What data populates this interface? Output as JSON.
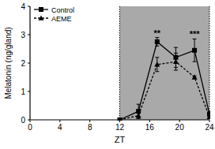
{
  "chart_data": {
    "type": "line",
    "x_label": "ZT",
    "y_label": "Melatonin (ng/gland)",
    "xlim": [
      0,
      24
    ],
    "xticks": [
      0,
      4,
      8,
      12,
      16,
      20,
      24
    ],
    "ylim": [
      0,
      4
    ],
    "yticks": [
      0,
      1,
      2,
      3,
      4
    ],
    "shaded_x": [
      12,
      24
    ],
    "legend": "upper left",
    "series": [
      {
        "name": "Control",
        "color": "#000000",
        "marker": "square",
        "line_style": "solid",
        "x": [
          12,
          14.5,
          17,
          19.5,
          22,
          24
        ],
        "values": [
          0,
          0.3,
          2.75,
          2.2,
          2.45,
          0.2
        ],
        "errors": [
          0,
          0.25,
          0.15,
          0.35,
          0.4,
          0.1
        ]
      },
      {
        "name": "AEME",
        "color": "#000000",
        "marker": "triangle",
        "line_style": "dashed",
        "x": [
          12,
          14.5,
          17,
          19.5,
          22,
          24
        ],
        "values": [
          0,
          0.15,
          1.95,
          2.05,
          1.5,
          0.1
        ],
        "errors": [
          0,
          0.1,
          0.25,
          0.3,
          0.05,
          0.05
        ]
      }
    ],
    "annotations": [
      {
        "text": "**",
        "x": 17
      },
      {
        "text": "***",
        "x": 22
      }
    ]
  }
}
